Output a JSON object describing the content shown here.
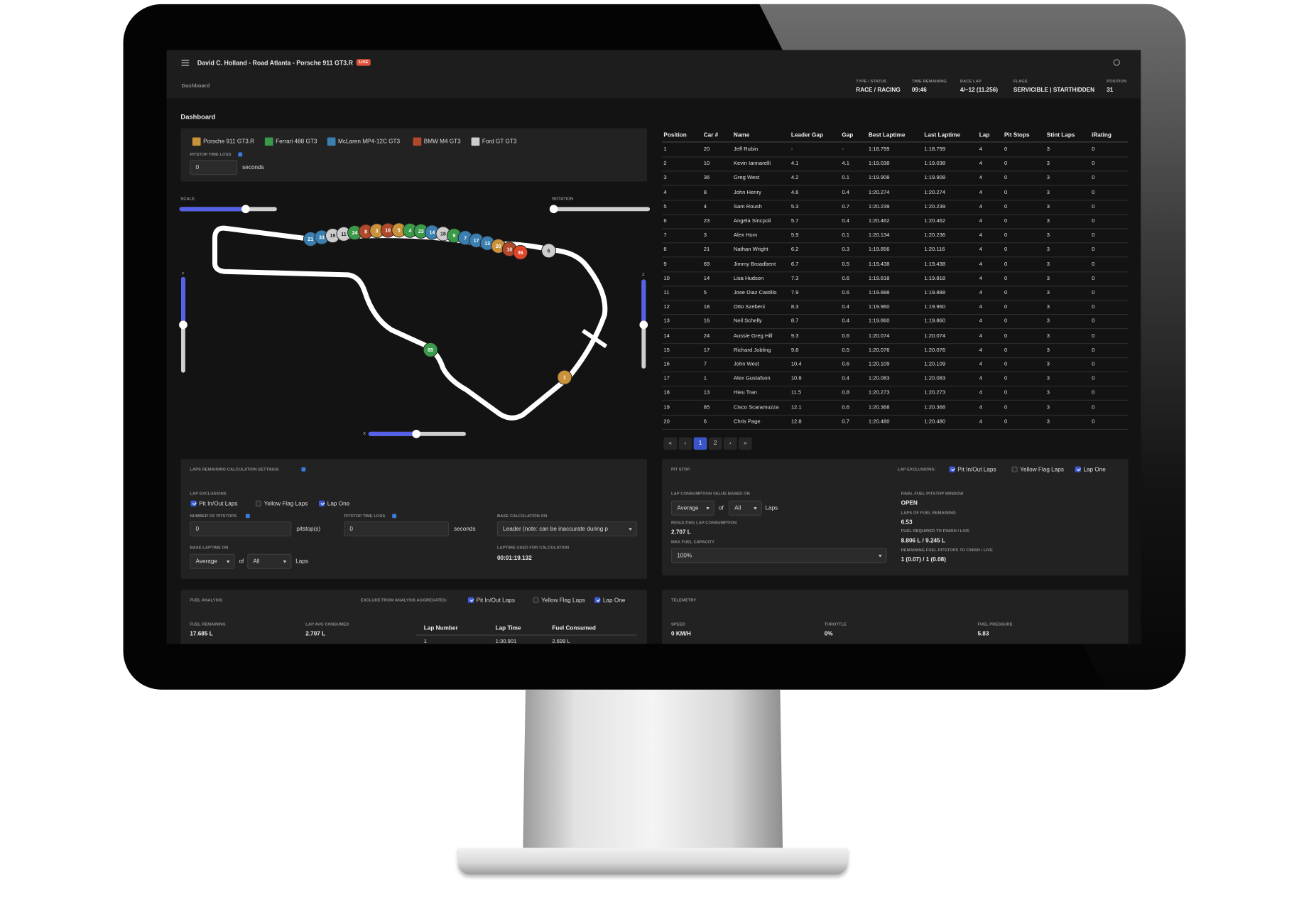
{
  "header": {
    "title": "David C. Holland - Road Atlanta - Porsche 911 GT3.R",
    "badge": "LIVE",
    "breadcrumb": "Dashboard",
    "status": [
      {
        "label": "TYPE / STATUS",
        "value": "RACE / RACING"
      },
      {
        "label": "TIME REMAINING",
        "value": "09:46"
      },
      {
        "label": "RACE LAP",
        "value": "4/~12 (11.256)"
      },
      {
        "label": "FLAGS",
        "value": "SERVICIBLE | STARTHIDDEN"
      },
      {
        "label": "POSITION",
        "value": "31"
      }
    ]
  },
  "page_title": "Dashboard",
  "classes": {
    "items": [
      {
        "name": "Porsche 911 GT3.R",
        "color": "#c8913a"
      },
      {
        "name": "Ferrari 488 GT3",
        "color": "#3a9a4a"
      },
      {
        "name": "McLaren MP4-12C GT3",
        "color": "#3a7fb0"
      },
      {
        "name": "BMW M4 GT3",
        "color": "#b0482a"
      },
      {
        "name": "Ford GT GT3",
        "color": "#cccccc"
      }
    ],
    "pitstop_time_loss": {
      "label": "PITSTOP TIME LOSS",
      "value": "0",
      "unit": "seconds"
    }
  },
  "map": {
    "scale_label": "SCALE",
    "rotation_label": "ROTATION",
    "y_label": "Y",
    "z_label": "Z",
    "x_label": "X",
    "cars": [
      {
        "label": "21",
        "color": "#3a7fb0"
      },
      {
        "label": "33",
        "color": "#3a7fb0"
      },
      {
        "label": "19",
        "color": "#cccccc"
      },
      {
        "label": "11",
        "color": "#cccccc"
      },
      {
        "label": "24",
        "color": "#3a9a4a"
      },
      {
        "label": "8",
        "color": "#b0482a"
      },
      {
        "label": "3",
        "color": "#c8913a"
      },
      {
        "label": "16",
        "color": "#b0482a"
      },
      {
        "label": "5",
        "color": "#c8913a"
      },
      {
        "label": "4",
        "color": "#3a9a4a"
      },
      {
        "label": "23",
        "color": "#3a9a4a"
      },
      {
        "label": "14",
        "color": "#3a7fb0"
      },
      {
        "label": "18",
        "color": "#cccccc"
      },
      {
        "label": "9",
        "color": "#3a9a4a"
      },
      {
        "label": "7",
        "color": "#3a7fb0"
      },
      {
        "label": "17",
        "color": "#3a7fb0"
      },
      {
        "label": "13",
        "color": "#3a7fb0"
      },
      {
        "label": "20",
        "color": "#c8913a"
      },
      {
        "label": "10",
        "color": "#b0482a"
      },
      {
        "label": "36",
        "color": "#e0452a"
      },
      {
        "label": "6",
        "color": "#cccccc"
      },
      {
        "label": "85",
        "color": "#3a9a4a"
      },
      {
        "label": "1",
        "color": "#c8913a"
      }
    ]
  },
  "standings": {
    "columns": [
      "Position",
      "Car #",
      "Name",
      "Leader Gap",
      "Gap",
      "Best Laptime",
      "Last Laptime",
      "Lap",
      "Pit Stops",
      "Stint Laps",
      "iRating"
    ],
    "rows": [
      [
        "1",
        "20",
        "Jeff Rubin",
        "-",
        "-",
        "1:18.799",
        "1:18.799",
        "4",
        "0",
        "3",
        "0"
      ],
      [
        "2",
        "10",
        "Kevin Iannarelli",
        "4.1",
        "4.1",
        "1:19.038",
        "1:19.038",
        "4",
        "0",
        "3",
        "0"
      ],
      [
        "3",
        "36",
        "Greg West",
        "4.2",
        "0.1",
        "1:19.908",
        "1:19.908",
        "4",
        "0",
        "3",
        "0"
      ],
      [
        "4",
        "8",
        "John Henry",
        "4.6",
        "0.4",
        "1:20.274",
        "1:20.274",
        "4",
        "0",
        "3",
        "0"
      ],
      [
        "5",
        "4",
        "Sam Roush",
        "5.3",
        "0.7",
        "1:20.239",
        "1:20.239",
        "4",
        "0",
        "3",
        "0"
      ],
      [
        "6",
        "23",
        "Angela Sincpoli",
        "5.7",
        "0.4",
        "1:20.462",
        "1:20.462",
        "4",
        "0",
        "3",
        "0"
      ],
      [
        "7",
        "3",
        "Alex Horn",
        "5.9",
        "0.1",
        "1:20.134",
        "1:20.236",
        "4",
        "0",
        "3",
        "0"
      ],
      [
        "8",
        "21",
        "Nathan Wright",
        "6.2",
        "0.3",
        "1:19.856",
        "1:20.116",
        "4",
        "0",
        "3",
        "0"
      ],
      [
        "9",
        "69",
        "Jimmy Broadbent",
        "6.7",
        "0.5",
        "1:19.438",
        "1:19.438",
        "4",
        "0",
        "3",
        "0"
      ],
      [
        "10",
        "14",
        "Lisa Hudson",
        "7.3",
        "0.6",
        "1:19.818",
        "1:19.818",
        "4",
        "0",
        "3",
        "0"
      ],
      [
        "11",
        "5",
        "Jose Diaz Castillo",
        "7.9",
        "0.6",
        "1:19.888",
        "1:19.888",
        "4",
        "0",
        "3",
        "0"
      ],
      [
        "12",
        "18",
        "Otto Szebeni",
        "8.3",
        "0.4",
        "1:19.960",
        "1:19.960",
        "4",
        "0",
        "3",
        "0"
      ],
      [
        "13",
        "16",
        "Neil Schelly",
        "8.7",
        "0.4",
        "1:19.860",
        "1:19.860",
        "4",
        "0",
        "3",
        "0"
      ],
      [
        "14",
        "24",
        "Aussie Greg Hill",
        "9.3",
        "0.6",
        "1:20.074",
        "1:20.074",
        "4",
        "0",
        "3",
        "0"
      ],
      [
        "15",
        "17",
        "Richard Jobling",
        "9.8",
        "0.5",
        "1:20.076",
        "1:20.076",
        "4",
        "0",
        "3",
        "0"
      ],
      [
        "16",
        "7",
        "John West",
        "10.4",
        "0.6",
        "1:20.109",
        "1:20.109",
        "4",
        "0",
        "3",
        "0"
      ],
      [
        "17",
        "1",
        "Alex Gustafson",
        "10.8",
        "0.4",
        "1:20.083",
        "1:20.083",
        "4",
        "0",
        "3",
        "0"
      ],
      [
        "18",
        "13",
        "Hieu Tran",
        "11.5",
        "0.8",
        "1:20.273",
        "1:20.273",
        "4",
        "0",
        "3",
        "0"
      ],
      [
        "19",
        "85",
        "Cisco Scaramuzza",
        "12.1",
        "0.6",
        "1:20.368",
        "1:20.368",
        "4",
        "0",
        "3",
        "0"
      ],
      [
        "20",
        "6",
        "Chris Page",
        "12.8",
        "0.7",
        "1:20.480",
        "1:20.480",
        "4",
        "0",
        "3",
        "0"
      ]
    ],
    "pagination": [
      {
        "label": "«",
        "active": false
      },
      {
        "label": "‹",
        "active": false
      },
      {
        "label": "1",
        "active": true
      },
      {
        "label": "2",
        "active": false
      },
      {
        "label": "›",
        "active": false
      },
      {
        "label": "»",
        "active": false
      }
    ]
  },
  "laps_panel": {
    "title": "LAPS REMAINING CALCULATION SETTINGS",
    "exclusions_label": "LAP EXCLUSIONS",
    "exclusions": [
      {
        "label": "Pit In/Out Laps",
        "checked": true
      },
      {
        "label": "Yellow Flag Laps",
        "checked": false
      },
      {
        "label": "Lap One",
        "checked": true
      }
    ],
    "pitstops": {
      "label": "NUMBER OF PITSTOPS",
      "value": "0",
      "unit": "pitstop(s)"
    },
    "pitstop_time_loss": {
      "label": "PITSTOP TIME LOSS",
      "value": "0",
      "unit": "seconds"
    },
    "base_calculation": {
      "label": "BASE CALCULATION ON",
      "value": "Leader (note: can be inaccurate during p"
    },
    "base_laptime": {
      "label": "BASE LAPTIME ON",
      "method": "Average",
      "of": "of",
      "scope": "All",
      "unit": "Laps"
    },
    "laptime_used": {
      "label": "LAPTIME USED FOR CALCULATION",
      "value": "00:01:19.132"
    }
  },
  "pit_panel": {
    "title": "PIT STOP",
    "exclusions_label": "LAP EXCLUSIONS:",
    "exclusions": [
      {
        "label": "Pit In/Out Laps",
        "checked": true
      },
      {
        "label": "Yellow Flag Laps",
        "checked": false
      },
      {
        "label": "Lap One",
        "checked": true
      }
    ],
    "consumption_basis": {
      "label": "LAP CONSUMPTION VALUE BASED ON",
      "method": "Average",
      "of": "of",
      "scope": "All",
      "unit": "Laps"
    },
    "resulting": {
      "label": "RESULTING LAP CONSUMPTION",
      "value": "2.707 L"
    },
    "max_fuel": {
      "label": "MAX FUEL CAPACITY",
      "value": "100%"
    },
    "stats": [
      {
        "label": "FINAL FUEL PITSTOP WINDOW",
        "value": "OPEN"
      },
      {
        "label": "LAPS OF FUEL REMAINING",
        "value": "6.53"
      },
      {
        "label": "FUEL REQUIRED TO FINISH / LIVE",
        "value": "8.806 L / 9.245 L"
      },
      {
        "label": "REMAINING FUEL PITSTOPS TO FINISH / LIVE",
        "value": "1 (0.07) / 1 (0.08)"
      }
    ]
  },
  "fuel_panel": {
    "title": "FUEL ANALYSIS",
    "exclusions_label": "EXCLUDE FROM ANALYSIS AGGREGATES:",
    "exclusions": [
      {
        "label": "Pit In/Out Laps",
        "checked": true
      },
      {
        "label": "Yellow Flag Laps",
        "checked": false
      },
      {
        "label": "Lap One",
        "checked": true
      }
    ],
    "stats": [
      {
        "label": "FUEL REMAINING",
        "value": "17.685 L"
      },
      {
        "label": "LAP AVG CONSUMED",
        "value": "2.707 L"
      }
    ],
    "columns": [
      "Lap Number",
      "Lap Time",
      "Fuel Consumed"
    ],
    "rows": [
      [
        "1",
        "1:30.901",
        "2.699 L"
      ]
    ]
  },
  "telemetry": {
    "title": "TELEMETRY",
    "stats": [
      {
        "label": "SPEED",
        "value": "0 KM/H"
      },
      {
        "label": "THROTTLE",
        "value": "0%"
      },
      {
        "label": "FUEL PRESSURE",
        "value": "5.83"
      }
    ]
  }
}
